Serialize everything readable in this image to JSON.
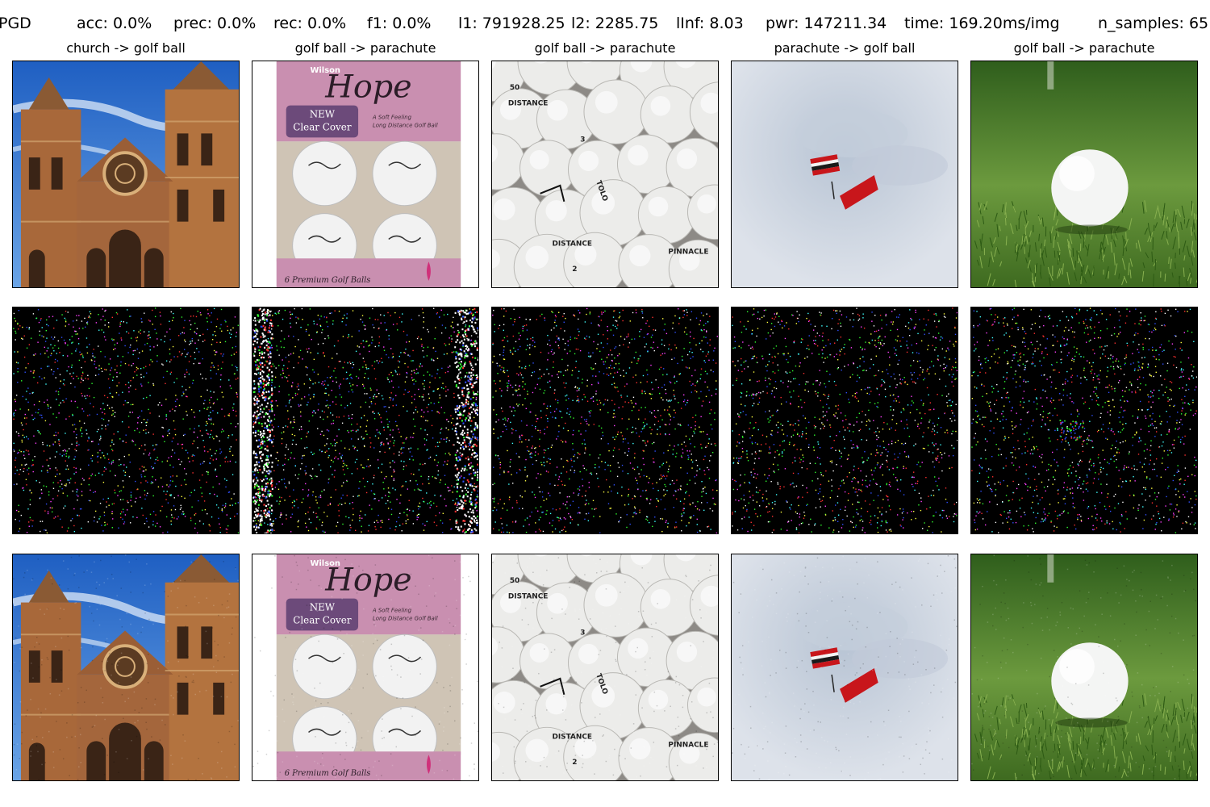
{
  "header": {
    "method": "PGD",
    "acc": "acc: 0.0%",
    "prec": "prec: 0.0%",
    "rec": "rec: 0.0%",
    "f1": "f1: 0.0%",
    "l1": "l1: 791928.25",
    "l2": "l2: 2285.75",
    "linf": "lInf: 8.03",
    "pwr": "pwr: 147211.34",
    "time": "time: 169.20ms/img",
    "n_samples": "n_samples: 65"
  },
  "columns": [
    {
      "title": "church -> golf ball",
      "scene": "church"
    },
    {
      "title": "golf ball -> parachute",
      "scene": "golf-ball-box"
    },
    {
      "title": "golf ball -> parachute",
      "scene": "golf-ball-pile"
    },
    {
      "title": "parachute -> golf ball",
      "scene": "parachute-sky"
    },
    {
      "title": "golf ball -> parachute",
      "scene": "golf-ball-grass"
    }
  ],
  "rows": [
    "original",
    "perturbation",
    "adversarial"
  ],
  "image_text": {
    "box_brand": "Wilson",
    "box_script": "Hope",
    "box_badge_1": "NEW",
    "box_badge_2": "Clear Cover",
    "box_tagline_1": "A Soft Feeling",
    "box_tagline_2": "Long Distance Golf Ball",
    "box_bottom": "6 Premium Golf Balls",
    "ball_marks": [
      "50",
      "DISTANCE",
      "3",
      "TOLO",
      "2",
      "DISTANCE",
      "PINNACLE"
    ]
  },
  "colors": {
    "background": "#ffffff",
    "noise_bg": "#000000",
    "sky": "#2a6fc9",
    "church_brick": "#a8683a",
    "box_pink": "#c98fb0",
    "fog": "#d6dce6",
    "grass": "#4f8a2c"
  }
}
